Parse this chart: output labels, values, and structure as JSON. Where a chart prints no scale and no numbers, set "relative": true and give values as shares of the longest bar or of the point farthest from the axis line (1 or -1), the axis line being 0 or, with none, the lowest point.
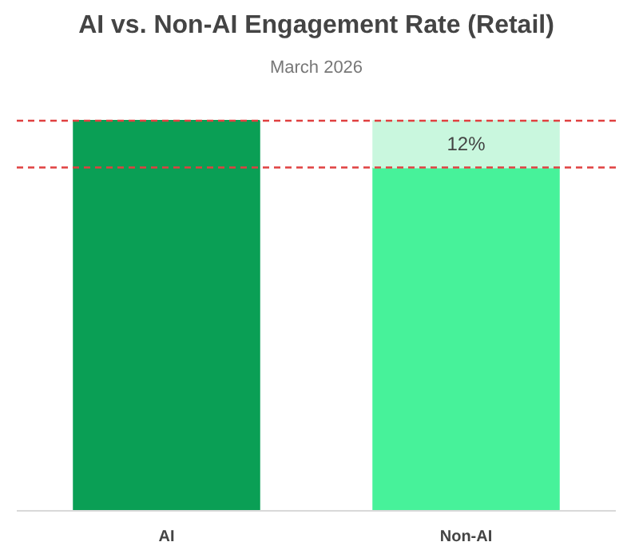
{
  "chart_data": {
    "type": "bar",
    "title": "AI vs. Non-AI Engagement Rate (Retail)",
    "subtitle": "March 2026",
    "categories": [
      "AI",
      "Non-AI"
    ],
    "relative": true,
    "stacked": true,
    "series": [
      {
        "colors": [
          "#0a9f55",
          "#47f29a"
        ],
        "values": [
          1,
          0.88
        ]
      },
      {
        "color": "#c9f7de",
        "values": [
          null,
          0.12
        ]
      }
    ],
    "ref_lines": [
      {
        "axis": "y",
        "value": 1,
        "color": "#e04040",
        "line_style": "dashed"
      },
      {
        "axis": "y",
        "value": 0.88,
        "color": "#e04040",
        "line_style": "dashed"
      }
    ],
    "annotations": [
      "12%"
    ]
  }
}
